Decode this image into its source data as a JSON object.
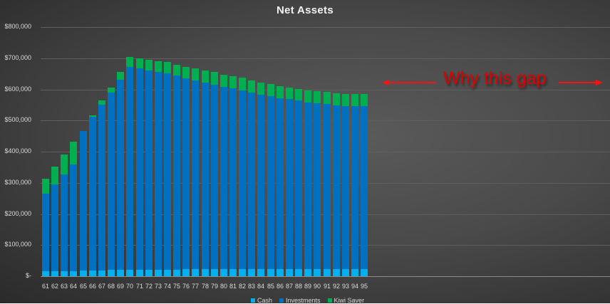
{
  "chart_data": {
    "type": "bar",
    "stacked": true,
    "title": "Net Assets",
    "xlabel": "",
    "ylabel": "",
    "ylim": [
      0,
      800000
    ],
    "y_ticks": [
      "$-",
      "$100,000",
      "$200,000",
      "$300,000",
      "$400,000",
      "$500,000",
      "$600,000",
      "$700,000",
      "$800,000"
    ],
    "grid": true,
    "legend_position": "bottom",
    "categories": [
      "61",
      "62",
      "63",
      "64",
      "65",
      "66",
      "67",
      "68",
      "69",
      "70",
      "71",
      "72",
      "73",
      "74",
      "75",
      "76",
      "77",
      "78",
      "79",
      "80",
      "81",
      "82",
      "83",
      "84",
      "85",
      "86",
      "87",
      "88",
      "89",
      "90",
      "91",
      "92",
      "93",
      "94",
      "95"
    ],
    "series": [
      {
        "name": "Cash",
        "color": "#00b0f0",
        "values": [
          16000,
          16000,
          16000,
          16000,
          18000,
          18000,
          18000,
          20000,
          20000,
          20000,
          20000,
          20000,
          20000,
          20000,
          20000,
          23000,
          23000,
          23000,
          23000,
          23000,
          23000,
          23000,
          23000,
          23000,
          23000,
          23000,
          23000,
          23000,
          23000,
          23000,
          23000,
          23000,
          23000,
          23000,
          23000
        ]
      },
      {
        "name": "Investments",
        "color": "#0070c0",
        "values": [
          249000,
          278000,
          310000,
          342000,
          448000,
          494000,
          533000,
          569000,
          611000,
          652000,
          647000,
          640000,
          636000,
          631000,
          624000,
          612000,
          605000,
          598000,
          591000,
          584000,
          580000,
          573000,
          566000,
          559000,
          555000,
          548000,
          546000,
          541000,
          535000,
          532000,
          530000,
          525000,
          523000,
          523000,
          523000
        ]
      },
      {
        "name": "Kiwi Saver",
        "color": "#00b050",
        "values": [
          48000,
          59000,
          64000,
          73000,
          0,
          5000,
          14000,
          16000,
          25000,
          32000,
          32000,
          34000,
          34000,
          36000,
          34000,
          37000,
          39000,
          39000,
          41000,
          41000,
          39000,
          41000,
          39000,
          39000,
          39000,
          39000,
          37000,
          37000,
          39000,
          39000,
          39000,
          39000,
          39000,
          39000,
          39000
        ]
      }
    ],
    "annotations": [
      {
        "text": "Why this gap",
        "color": "#e00000",
        "arrows": "left-and-right",
        "points_to": "empty area right of age 95"
      }
    ]
  },
  "title": "Net Assets",
  "legend": [
    {
      "label": "Cash",
      "color": "#00b0f0"
    },
    {
      "label": "Investments",
      "color": "#0070c0"
    },
    {
      "label": "Kiwi Saver",
      "color": "#00b050"
    }
  ],
  "annotation": {
    "text": "Why this gap",
    "color": "#e00000"
  }
}
